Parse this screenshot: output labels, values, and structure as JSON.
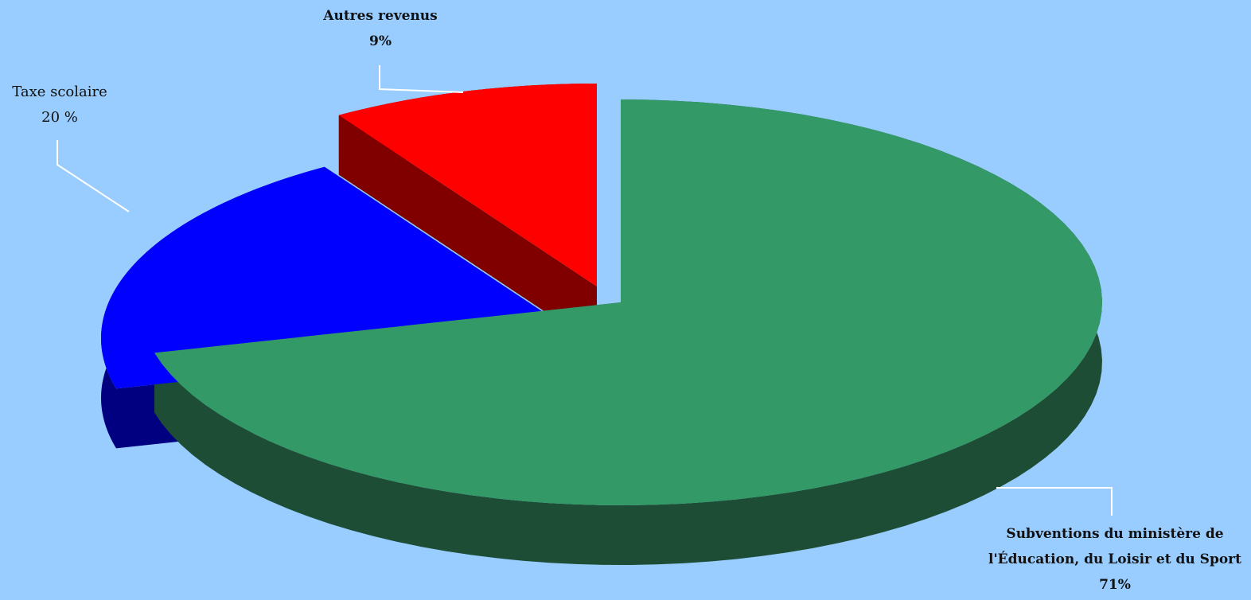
{
  "chart_data": {
    "type": "pie",
    "style": "3d",
    "title": "",
    "slices": [
      {
        "key": "subventions",
        "label_lines": [
          "Subventions du ministère de",
          "l'Éducation, du Loisir et du Sport"
        ],
        "value": 71,
        "value_label": "71%",
        "top_color": "#339966",
        "side_color": "#1d4d35",
        "exploded": false
      },
      {
        "key": "taxe",
        "label_lines": [
          "Taxe scolaire"
        ],
        "value": 20,
        "value_label": "20 %",
        "top_color": "#0000ff",
        "side_color": "#000080",
        "exploded": true
      },
      {
        "key": "autres",
        "label_lines": [
          "Autres revenus"
        ],
        "value": 9,
        "value_label": "9%",
        "top_color": "#ff0000",
        "side_color": "#800000",
        "exploded": true
      }
    ],
    "legend": "none",
    "label_style": "callouts with leader lines"
  },
  "colors": {
    "background": "#99ccff",
    "leader_line": "#ffffff"
  }
}
